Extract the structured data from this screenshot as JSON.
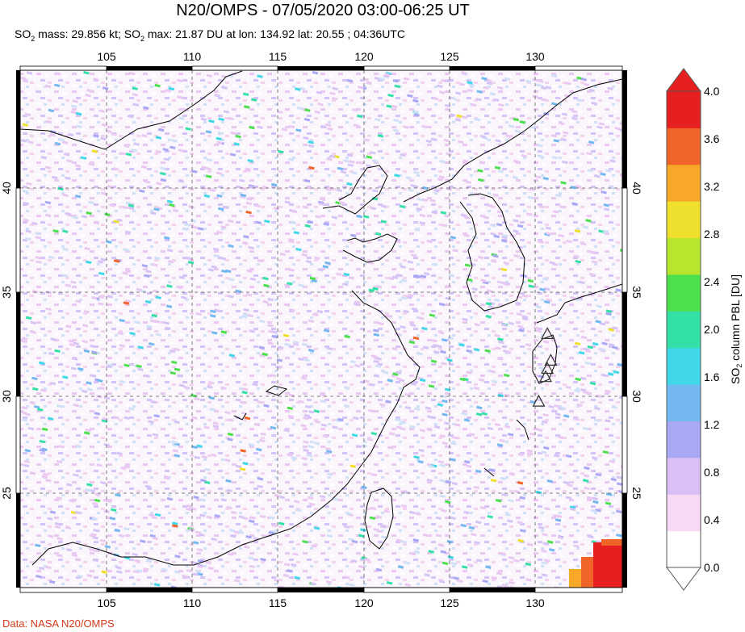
{
  "header": {
    "title": "N20/OMPS - 07/05/2020 03:00-06:25 UT",
    "stats_prefix": "SO",
    "stats_text": " mass: 29.856 kt; SO",
    "stats_text2": " max: 21.87 DU at lon: 134.92 lat: 20.55 ; 04:36UTC",
    "subscript": "2"
  },
  "map": {
    "lon_ticks": [
      "105",
      "110",
      "115",
      "120",
      "125",
      "130"
    ],
    "lat_ticks": [
      "40",
      "35",
      "30",
      "25"
    ],
    "volcano_markers": [
      {
        "lon": 130.7,
        "lat": 32.9
      },
      {
        "lon": 130.9,
        "lat": 31.6
      },
      {
        "lon": 130.7,
        "lat": 31.2
      },
      {
        "lon": 130.6,
        "lat": 30.8
      },
      {
        "lon": 130.2,
        "lat": 29.6
      }
    ]
  },
  "colorbar": {
    "title_prefix": "SO",
    "title_sub": "2",
    "title_suffix": " column PBL [DU]",
    "ticks": [
      "4.0",
      "3.6",
      "3.2",
      "2.8",
      "2.4",
      "2.0",
      "1.6",
      "1.2",
      "0.8",
      "0.4",
      "0.0"
    ],
    "colors": [
      "#ffffff",
      "#f7d9f5",
      "#d9bff5",
      "#a8a8f5",
      "#73b8f0",
      "#40d8e8",
      "#33e0a8",
      "#4de04d",
      "#b8e62e",
      "#f0e02e",
      "#f7a829",
      "#f06428",
      "#e62020"
    ]
  },
  "credit": "Data: NASA N20/OMPS"
}
